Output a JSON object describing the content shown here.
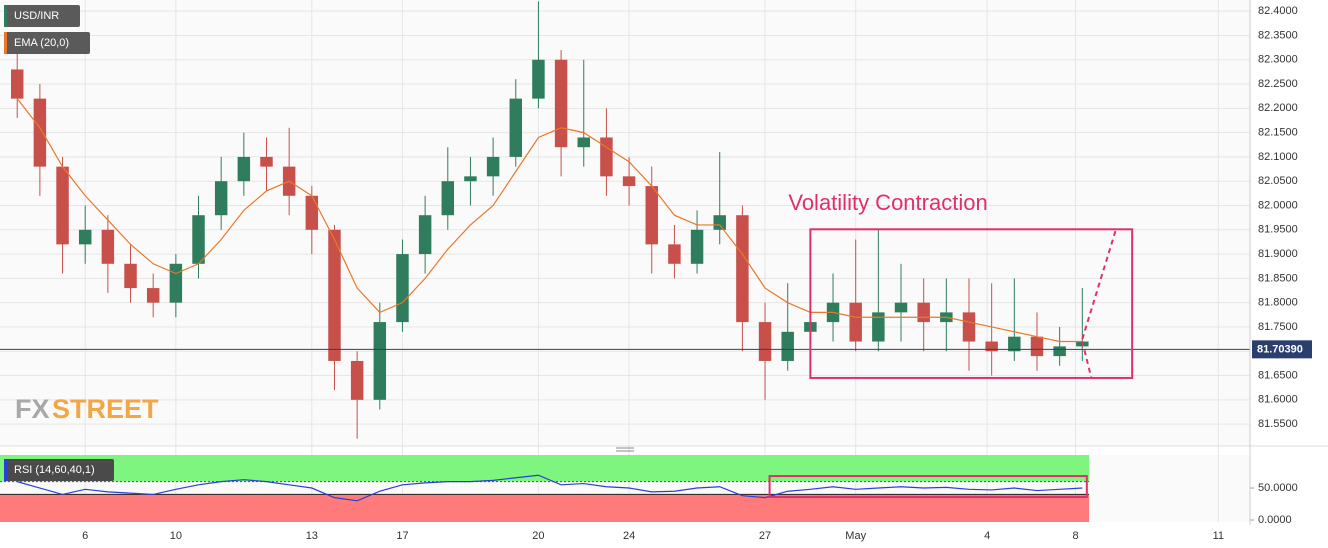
{
  "chart_data": [
    {
      "type": "candlestick",
      "symbol": "USD/INR",
      "x": [
        0.5,
        1.0,
        1.5,
        2.0,
        2.5,
        3.0,
        3.5,
        4.0,
        4.5,
        5.0,
        5.5,
        6.0,
        6.5,
        7.0,
        7.5,
        8.0,
        8.5,
        9.0,
        9.5,
        10.0,
        10.5,
        11.0,
        11.5,
        12.0,
        12.5,
        13.0,
        13.5,
        14.0,
        14.5,
        15.0,
        15.5,
        16.0,
        16.5,
        17.0,
        17.5,
        18.0,
        18.5,
        19.0,
        19.5,
        20.0,
        20.5,
        21.0,
        21.5,
        22.0,
        22.5,
        23.0,
        23.5,
        24.0
      ],
      "open": [
        82.28,
        82.22,
        82.08,
        81.92,
        81.95,
        81.88,
        81.83,
        81.8,
        81.88,
        81.98,
        82.05,
        82.1,
        82.08,
        82.02,
        81.95,
        81.68,
        81.6,
        81.76,
        81.9,
        81.98,
        82.05,
        82.06,
        82.1,
        82.22,
        82.3,
        82.12,
        82.14,
        82.06,
        82.04,
        81.92,
        81.88,
        81.95,
        81.98,
        81.76,
        81.68,
        81.74,
        81.76,
        81.8,
        81.72,
        81.78,
        81.8,
        81.76,
        81.78,
        81.72,
        81.7,
        81.73,
        81.69,
        81.71
      ],
      "high": [
        82.33,
        82.25,
        82.1,
        82.0,
        81.98,
        81.92,
        81.86,
        81.9,
        82.02,
        82.1,
        82.15,
        82.14,
        82.16,
        82.04,
        81.96,
        81.7,
        81.8,
        81.93,
        82.02,
        82.12,
        82.1,
        82.14,
        82.26,
        82.42,
        82.32,
        82.3,
        82.2,
        82.1,
        82.08,
        81.96,
        81.99,
        82.11,
        82.0,
        81.8,
        81.84,
        81.82,
        81.86,
        81.93,
        81.95,
        81.88,
        81.85,
        81.85,
        81.85,
        81.84,
        81.85,
        81.78,
        81.75,
        81.83
      ],
      "low": [
        82.18,
        82.02,
        81.86,
        81.88,
        81.82,
        81.8,
        81.77,
        81.77,
        81.85,
        81.95,
        82.02,
        82.03,
        81.98,
        81.9,
        81.62,
        81.52,
        81.58,
        81.74,
        81.86,
        81.95,
        82.0,
        82.02,
        82.08,
        82.2,
        82.06,
        82.08,
        82.02,
        82.0,
        81.86,
        81.85,
        81.86,
        81.92,
        81.7,
        81.6,
        81.66,
        81.7,
        81.72,
        81.7,
        81.7,
        81.72,
        81.7,
        81.7,
        81.66,
        81.65,
        81.68,
        81.66,
        81.67,
        81.68
      ],
      "close": [
        82.22,
        82.08,
        81.92,
        81.95,
        81.88,
        81.83,
        81.8,
        81.88,
        81.98,
        82.05,
        82.1,
        82.08,
        82.02,
        81.95,
        81.68,
        81.6,
        81.76,
        81.9,
        81.98,
        82.05,
        82.06,
        82.1,
        82.22,
        82.3,
        82.12,
        82.14,
        82.06,
        82.04,
        81.92,
        81.88,
        81.95,
        81.98,
        81.76,
        81.68,
        81.74,
        81.76,
        81.8,
        81.72,
        81.78,
        81.8,
        81.76,
        81.78,
        81.72,
        81.7,
        81.73,
        81.69,
        81.71,
        81.72
      ],
      "up_color": "#2f7d5c",
      "down_color": "#c8504a",
      "overlay": {
        "name": "EMA (20,0)",
        "color": "#e8782a",
        "values": [
          82.22,
          82.16,
          82.08,
          82.02,
          81.97,
          81.92,
          81.88,
          81.86,
          81.88,
          81.93,
          81.99,
          82.03,
          82.05,
          82.02,
          81.93,
          81.83,
          81.78,
          81.8,
          81.85,
          81.91,
          81.96,
          82.0,
          82.07,
          82.14,
          82.16,
          82.15,
          82.12,
          82.09,
          82.04,
          81.98,
          81.96,
          81.96,
          81.9,
          81.83,
          81.8,
          81.78,
          81.78,
          81.77,
          81.77,
          81.77,
          81.77,
          81.77,
          81.76,
          81.75,
          81.74,
          81.73,
          81.72,
          81.72
        ]
      },
      "last_price": {
        "value": 81.7039,
        "label": "81.70390"
      },
      "annotation": {
        "text": "Volatility Contraction",
        "color": "#e0306a",
        "box_x": [
          18.0,
          25.1
        ],
        "box_y": [
          81.951,
          81.645
        ]
      },
      "projections": [
        {
          "x": [
            24.0,
            24.74
          ],
          "y": [
            81.725,
            81.95
          ]
        },
        {
          "x": [
            24.0,
            24.2
          ],
          "y": [
            81.72,
            81.645
          ]
        }
      ],
      "watermark": [
        "FX",
        "STREET"
      ],
      "xlim": [
        0.12,
        27.7
      ],
      "xticks": [
        {
          "value": 2,
          "label": "6"
        },
        {
          "value": 4,
          "label": "10"
        },
        {
          "value": 7,
          "label": "13"
        },
        {
          "value": 9,
          "label": "17"
        },
        {
          "value": 12,
          "label": "20"
        },
        {
          "value": 14,
          "label": "24"
        },
        {
          "value": 17,
          "label": "27"
        },
        {
          "value": 19,
          "label": "May"
        },
        {
          "value": 21.9,
          "label": "4"
        },
        {
          "value": 23.85,
          "label": "8"
        },
        {
          "value": 27,
          "label": "11"
        }
      ],
      "ylim": [
        81.507,
        82.423
      ],
      "yticks": [
        {
          "value": 82.4,
          "label": "82.4000"
        },
        {
          "value": 82.35,
          "label": "82.3500"
        },
        {
          "value": 82.3,
          "label": "82.3000"
        },
        {
          "value": 82.25,
          "label": "82.2500"
        },
        {
          "value": 82.2,
          "label": "82.2000"
        },
        {
          "value": 82.15,
          "label": "82.1500"
        },
        {
          "value": 82.1,
          "label": "82.1000"
        },
        {
          "value": 82.05,
          "label": "82.0500"
        },
        {
          "value": 82.0,
          "label": "82.0000"
        },
        {
          "value": 81.95,
          "label": "81.9500"
        },
        {
          "value": 81.9,
          "label": "81.9000"
        },
        {
          "value": 81.85,
          "label": "81.8500"
        },
        {
          "value": 81.8,
          "label": "81.8000"
        },
        {
          "value": 81.75,
          "label": "81.7500"
        },
        {
          "value": 81.7,
          "label": "81.7000"
        },
        {
          "value": 81.65,
          "label": "81.6500"
        },
        {
          "value": 81.6,
          "label": "81.6000"
        },
        {
          "value": 81.55,
          "label": "81.5500"
        }
      ]
    },
    {
      "type": "line",
      "name": "RSI (14,60,40,1)",
      "color": "#2a3fd6",
      "x": [
        0.5,
        1.0,
        1.5,
        2.0,
        2.5,
        3.0,
        3.5,
        4.0,
        4.5,
        5.0,
        5.5,
        6.0,
        6.5,
        7.0,
        7.5,
        8.0,
        8.5,
        9.0,
        9.5,
        10.0,
        10.5,
        11.0,
        11.5,
        12.0,
        12.5,
        13.0,
        13.5,
        14.0,
        14.5,
        15.0,
        15.5,
        16.0,
        16.5,
        17.0,
        17.5,
        18.0,
        18.5,
        19.0,
        19.5,
        20.0,
        20.5,
        21.0,
        21.5,
        22.0,
        22.5,
        23.0,
        23.5,
        24.0
      ],
      "values": [
        60,
        50,
        40,
        48,
        44,
        42,
        40,
        48,
        55,
        60,
        63,
        60,
        55,
        50,
        35,
        30,
        45,
        55,
        58,
        60,
        60,
        62,
        66,
        70,
        55,
        57,
        52,
        50,
        44,
        45,
        50,
        52,
        38,
        35,
        45,
        48,
        52,
        48,
        50,
        52,
        50,
        51,
        48,
        47,
        50,
        46,
        48,
        50
      ],
      "upper_band": 60,
      "lower_band": 40,
      "upper_color": "#7ef57e",
      "lower_color": "#ff7b7b",
      "annotation": {
        "color": "#e0306a",
        "box_x": [
          17.1,
          24.1
        ],
        "box_y": [
          68.7,
          36
        ]
      },
      "ylim": [
        -3.1,
        101.6
      ],
      "yticks": [
        {
          "value": 0,
          "label": "0.0000"
        },
        {
          "value": 50,
          "label": "50.0000"
        }
      ]
    }
  ]
}
